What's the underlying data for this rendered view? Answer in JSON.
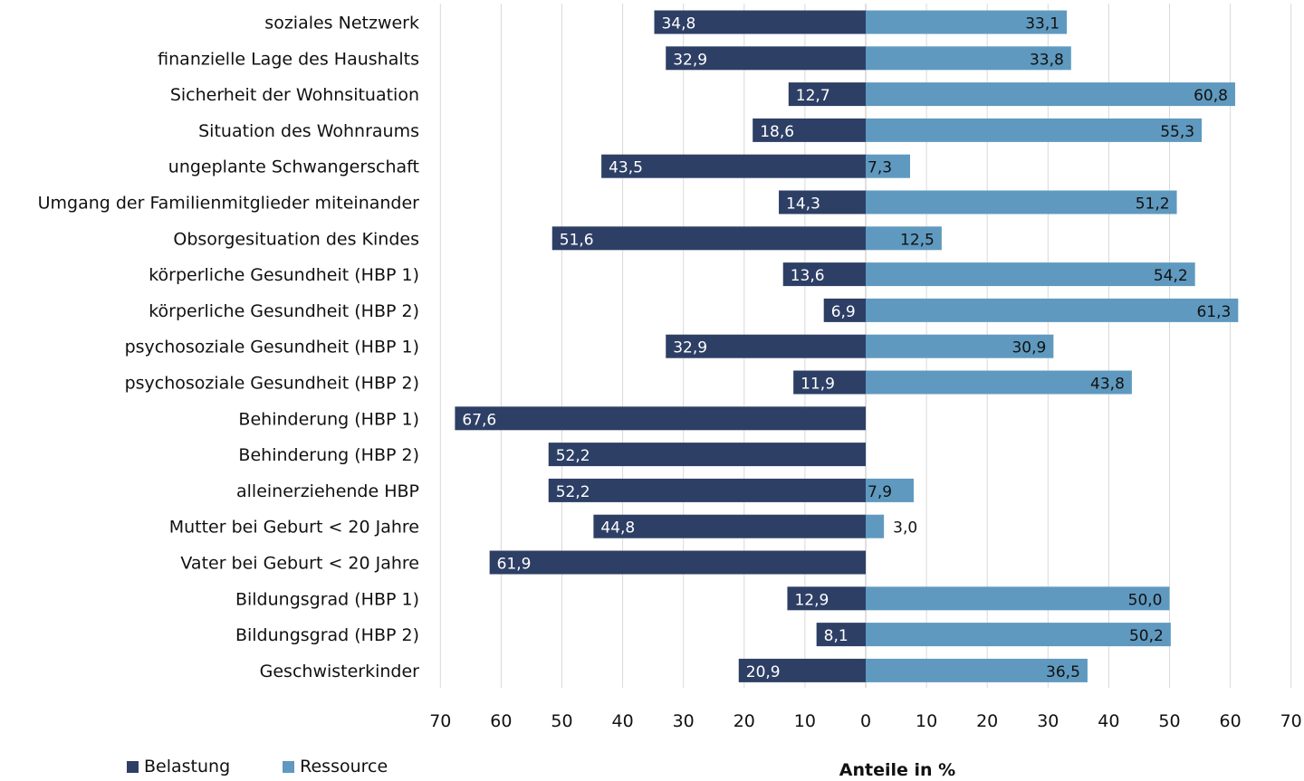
{
  "chart_data": {
    "type": "bar",
    "orientation": "horizontal-diverging",
    "categories": [
      "soziales Netzwerk",
      "finanzielle Lage des Haushalts",
      "Sicherheit der Wohnsituation",
      "Situation des Wohnraums",
      "ungeplante Schwangerschaft",
      "Umgang der Familienmitglieder miteinander",
      "Obsorgesituation des Kindes",
      "körperliche Gesundheit (HBP 1)",
      "körperliche Gesundheit (HBP 2)",
      "psychosoziale Gesundheit (HBP 1)",
      "psychosoziale Gesundheit (HBP 2)",
      "Behinderung (HBP 1)",
      "Behinderung (HBP 2)",
      "alleinerziehende HBP",
      "Mutter bei Geburt < 20 Jahre",
      "Vater bei Geburt < 20 Jahre",
      "Bildungsgrad (HBP 1)",
      "Bildungsgrad (HBP 2)",
      "Geschwisterkinder"
    ],
    "series": [
      {
        "name": "Belastung",
        "color": "#2e3f66",
        "values": [
          34.8,
          32.9,
          12.7,
          18.6,
          43.5,
          14.3,
          51.6,
          13.6,
          6.9,
          32.9,
          11.9,
          67.6,
          52.2,
          52.2,
          44.8,
          61.9,
          12.9,
          8.1,
          20.9
        ],
        "labels": [
          "34,8",
          "32,9",
          "12,7",
          "18,6",
          "43,5",
          "14,3",
          "51,6",
          "13,6",
          "6,9",
          "32,9",
          "11,9",
          "67,6",
          "52,2",
          "52,2",
          "44,8",
          "61,9",
          "12,9",
          "8,1",
          "20,9"
        ]
      },
      {
        "name": "Ressource",
        "color": "#5f99bf",
        "values": [
          33.1,
          33.8,
          60.8,
          55.3,
          7.3,
          51.2,
          12.5,
          54.2,
          61.3,
          30.9,
          43.8,
          null,
          null,
          7.9,
          3.0,
          null,
          50.0,
          50.2,
          36.5
        ],
        "labels": [
          "33,1",
          "33,8",
          "60,8",
          "55,3",
          "7,3",
          "51,2",
          "12,5",
          "54,2",
          "61,3",
          "30,9",
          "43,8",
          "",
          "",
          "7,9",
          "3,0",
          "",
          "50,0",
          "50,2",
          "36,5"
        ]
      }
    ],
    "xticks": [
      "70",
      "60",
      "50",
      "40",
      "30",
      "20",
      "10",
      "0",
      "10",
      "20",
      "30",
      "40",
      "50",
      "60",
      "70"
    ],
    "xlim": [
      -70,
      70
    ],
    "xlabel": "Anteile in %",
    "grid": true,
    "legend_position": "bottom-left"
  }
}
